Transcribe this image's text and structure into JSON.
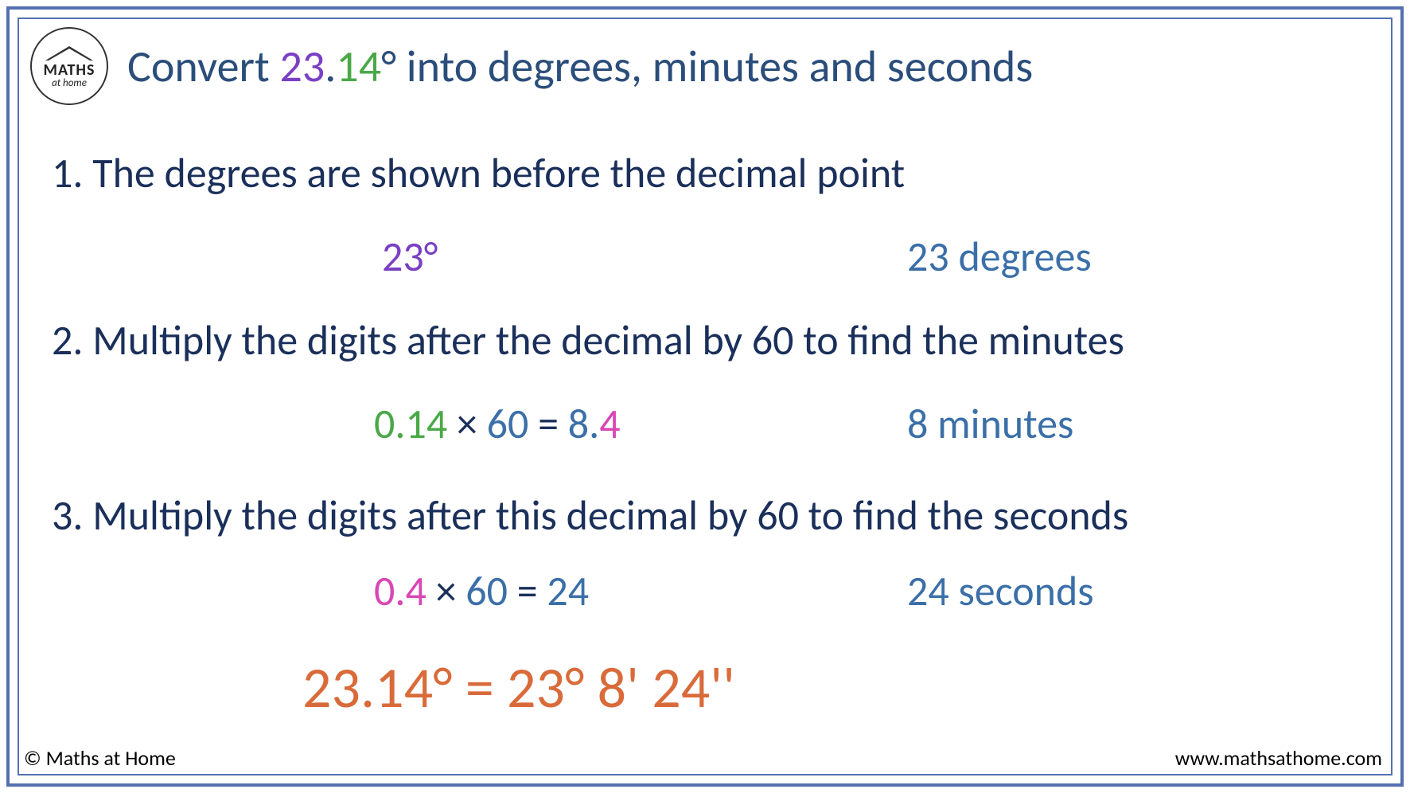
{
  "logo": {
    "line1": "MATHS",
    "line2": "at home"
  },
  "title": {
    "prefix": "Convert ",
    "num_int": "23",
    "dot": ".",
    "num_dec": "14",
    "suffix": "° into degrees, minutes and seconds"
  },
  "steps": {
    "s1": "1. The degrees are shown before the decimal point",
    "s2": "2. Multiply the digits after the decimal by 60 to find the minutes",
    "s3": "3. Multiply the digits after this decimal by 60 to find the seconds"
  },
  "row1": {
    "value": "23°",
    "label": "23 degrees"
  },
  "row2": {
    "operand": "0.14",
    "times": " ×  ",
    "sixty": "60",
    "eq": "  =  ",
    "res_int": "8.",
    "res_dec": "4",
    "label": "8 minutes"
  },
  "row3": {
    "operand": "0.4",
    "times": "   ×  ",
    "sixty": "60",
    "eq": "  = ",
    "result": "24",
    "label": "24 seconds"
  },
  "final": "23.14°  = 23°  8'  24''",
  "footer": {
    "copyright": "© Maths at Home",
    "website": "www.mathsathome.com"
  },
  "colors": {
    "border": "#5570b0",
    "heading": "#2a4d7a",
    "body": "#1a2f5a",
    "purple": "#7a3fc4",
    "green": "#4aa847",
    "blue": "#3b6fa8",
    "pink": "#d946b5",
    "orange": "#d96b3b"
  }
}
